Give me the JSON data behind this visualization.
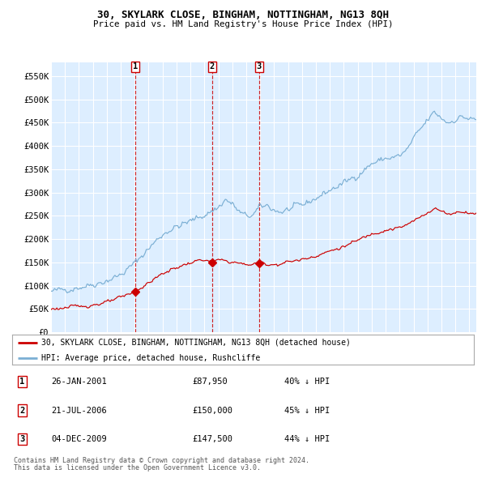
{
  "title": "30, SKYLARK CLOSE, BINGHAM, NOTTINGHAM, NG13 8QH",
  "subtitle": "Price paid vs. HM Land Registry's House Price Index (HPI)",
  "background_color": "#ffffff",
  "plot_bg_color": "#ddeeff",
  "grid_color": "#ffffff",
  "red_line_color": "#cc0000",
  "blue_line_color": "#7bafd4",
  "sale_marker_color": "#cc0000",
  "vline_color": "#cc0000",
  "ylim": [
    0,
    580000
  ],
  "yticks": [
    0,
    50000,
    100000,
    150000,
    200000,
    250000,
    300000,
    350000,
    400000,
    450000,
    500000,
    550000
  ],
  "ytick_labels": [
    "£0",
    "£50K",
    "£100K",
    "£150K",
    "£200K",
    "£250K",
    "£300K",
    "£350K",
    "£400K",
    "£450K",
    "£500K",
    "£550K"
  ],
  "sales": [
    {
      "label": "1",
      "date": "2001-01-26",
      "price": 87950,
      "time": 2001.07,
      "pct": "40%"
    },
    {
      "label": "2",
      "date": "2006-07-21",
      "price": 150000,
      "time": 2006.55,
      "pct": "45%"
    },
    {
      "label": "3",
      "date": "2009-12-04",
      "price": 147500,
      "time": 2009.92,
      "pct": "44%"
    }
  ],
  "legend_red_label": "30, SKYLARK CLOSE, BINGHAM, NOTTINGHAM, NG13 8QH (detached house)",
  "legend_blue_label": "HPI: Average price, detached house, Rushcliffe",
  "row_dates": [
    "26-JAN-2001",
    "21-JUL-2006",
    "04-DEC-2009"
  ],
  "row_prices": [
    "£87,950",
    "£150,000",
    "£147,500"
  ],
  "row_pcts": [
    "40% ↓ HPI",
    "45% ↓ HPI",
    "44% ↓ HPI"
  ],
  "footer_line1": "Contains HM Land Registry data © Crown copyright and database right 2024.",
  "footer_line2": "This data is licensed under the Open Government Licence v3.0.",
  "xstart": 1995.0,
  "xend": 2025.5
}
